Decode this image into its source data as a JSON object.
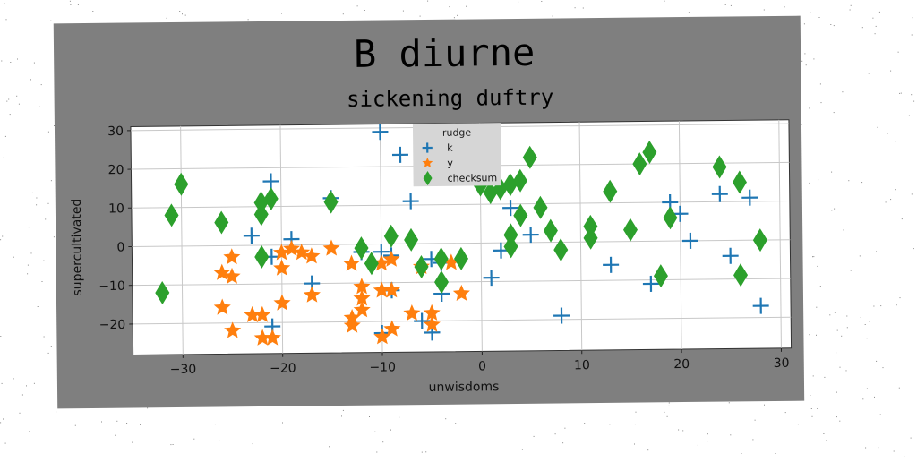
{
  "colors": {
    "background": "#ffffff",
    "figure_panel": "#7f7f7f",
    "plot_area": "#ffffff",
    "grid": "#c8c8c8",
    "k": "#1f77b4",
    "y": "#ff7f0e",
    "checksum": "#2ca02c",
    "legend_bg": "#d6d6d6"
  },
  "chart_data": {
    "type": "scatter",
    "title": "B diurne",
    "subtitle": "sickening duftry",
    "xlabel": "unwisdoms",
    "ylabel": "supercultivated",
    "xlim": [
      -35,
      31
    ],
    "ylim": [
      -28,
      31
    ],
    "xticks": [
      -30,
      -20,
      -10,
      0,
      10,
      20,
      30
    ],
    "xtick_labels": [
      "−30",
      "−20",
      "−10",
      "0",
      "10",
      "20",
      "30"
    ],
    "yticks": [
      -20,
      -10,
      0,
      10,
      20,
      30
    ],
    "ytick_labels": [
      "−20",
      "−10",
      "0",
      "10",
      "20",
      "30"
    ],
    "grid": true,
    "legend": {
      "title": "rudge",
      "placement": "top-center"
    },
    "series": [
      {
        "name": "k",
        "marker": "plus",
        "color": "#1f77b4",
        "points": [
          [
            -10,
            29
          ],
          [
            -8,
            23
          ],
          [
            -21,
            16.5
          ],
          [
            -15,
            12
          ],
          [
            -7,
            11
          ],
          [
            -23,
            2.5
          ],
          [
            -19,
            1.5
          ],
          [
            -21,
            -3
          ],
          [
            -12,
            -2
          ],
          [
            -10,
            -2
          ],
          [
            -9,
            -3
          ],
          [
            -5,
            -4
          ],
          [
            -4,
            -5
          ],
          [
            -17,
            -10
          ],
          [
            -4,
            -13
          ],
          [
            -9,
            -12
          ],
          [
            -6,
            -20
          ],
          [
            -5,
            -23
          ],
          [
            -10,
            -23
          ],
          [
            -21,
            -21
          ],
          [
            2,
            -2
          ],
          [
            1,
            -9
          ],
          [
            3,
            9
          ],
          [
            5,
            2
          ],
          [
            8,
            -19
          ],
          [
            13,
            -6
          ],
          [
            17,
            -11
          ],
          [
            19,
            10
          ],
          [
            20,
            7
          ],
          [
            21,
            0
          ],
          [
            24,
            12
          ],
          [
            25,
            -4
          ],
          [
            27,
            11
          ],
          [
            28,
            -17
          ]
        ]
      },
      {
        "name": "y",
        "marker": "star",
        "color": "#ff7f0e",
        "points": [
          [
            -26,
            -7
          ],
          [
            -25,
            -8
          ],
          [
            -25,
            -3
          ],
          [
            -26,
            -16
          ],
          [
            -23,
            -18
          ],
          [
            -22,
            -18
          ],
          [
            -25,
            -22
          ],
          [
            -22,
            -24
          ],
          [
            -21,
            -24
          ],
          [
            -20,
            -15
          ],
          [
            -20,
            -6
          ],
          [
            -20,
            -2
          ],
          [
            -19,
            -1
          ],
          [
            -18,
            -2
          ],
          [
            -17,
            -3
          ],
          [
            -17,
            -13
          ],
          [
            -15,
            -1
          ],
          [
            -13,
            -5
          ],
          [
            -12,
            -11
          ],
          [
            -12,
            -14
          ],
          [
            -13,
            -19
          ],
          [
            -13,
            -21
          ],
          [
            -10,
            -5
          ],
          [
            -9,
            -4
          ],
          [
            -9,
            -12
          ],
          [
            -10,
            -12
          ],
          [
            -7,
            -18
          ],
          [
            -5,
            -18
          ],
          [
            -5,
            -21
          ],
          [
            -10,
            -24
          ],
          [
            -9,
            -22
          ],
          [
            -6,
            -6
          ],
          [
            -3,
            -5
          ],
          [
            -2,
            -13
          ],
          [
            -12,
            -17
          ]
        ]
      },
      {
        "name": "checksum",
        "marker": "diamond",
        "color": "#2ca02c",
        "points": [
          [
            -32,
            -12
          ],
          [
            -31,
            8
          ],
          [
            -30,
            16
          ],
          [
            -26,
            6
          ],
          [
            -22,
            8
          ],
          [
            -22,
            11
          ],
          [
            -21,
            12
          ],
          [
            -22,
            -3
          ],
          [
            -15,
            11
          ],
          [
            -12,
            -1
          ],
          [
            -11,
            -5
          ],
          [
            -9,
            2
          ],
          [
            -7,
            1
          ],
          [
            -6,
            -6
          ],
          [
            -4,
            -4
          ],
          [
            -4,
            -10
          ],
          [
            -2,
            -4
          ],
          [
            0,
            15
          ],
          [
            1,
            13
          ],
          [
            2,
            14
          ],
          [
            3,
            15
          ],
          [
            3,
            2
          ],
          [
            3,
            -1
          ],
          [
            4,
            7
          ],
          [
            4,
            16
          ],
          [
            5,
            22
          ],
          [
            6,
            9
          ],
          [
            7,
            3
          ],
          [
            8,
            -2
          ],
          [
            11,
            4
          ],
          [
            11,
            1
          ],
          [
            13,
            13
          ],
          [
            15,
            3
          ],
          [
            16,
            20
          ],
          [
            17,
            23
          ],
          [
            18,
            -9
          ],
          [
            19,
            6
          ],
          [
            24,
            19
          ],
          [
            26,
            15
          ],
          [
            26,
            -9
          ],
          [
            28,
            0
          ]
        ]
      }
    ]
  }
}
